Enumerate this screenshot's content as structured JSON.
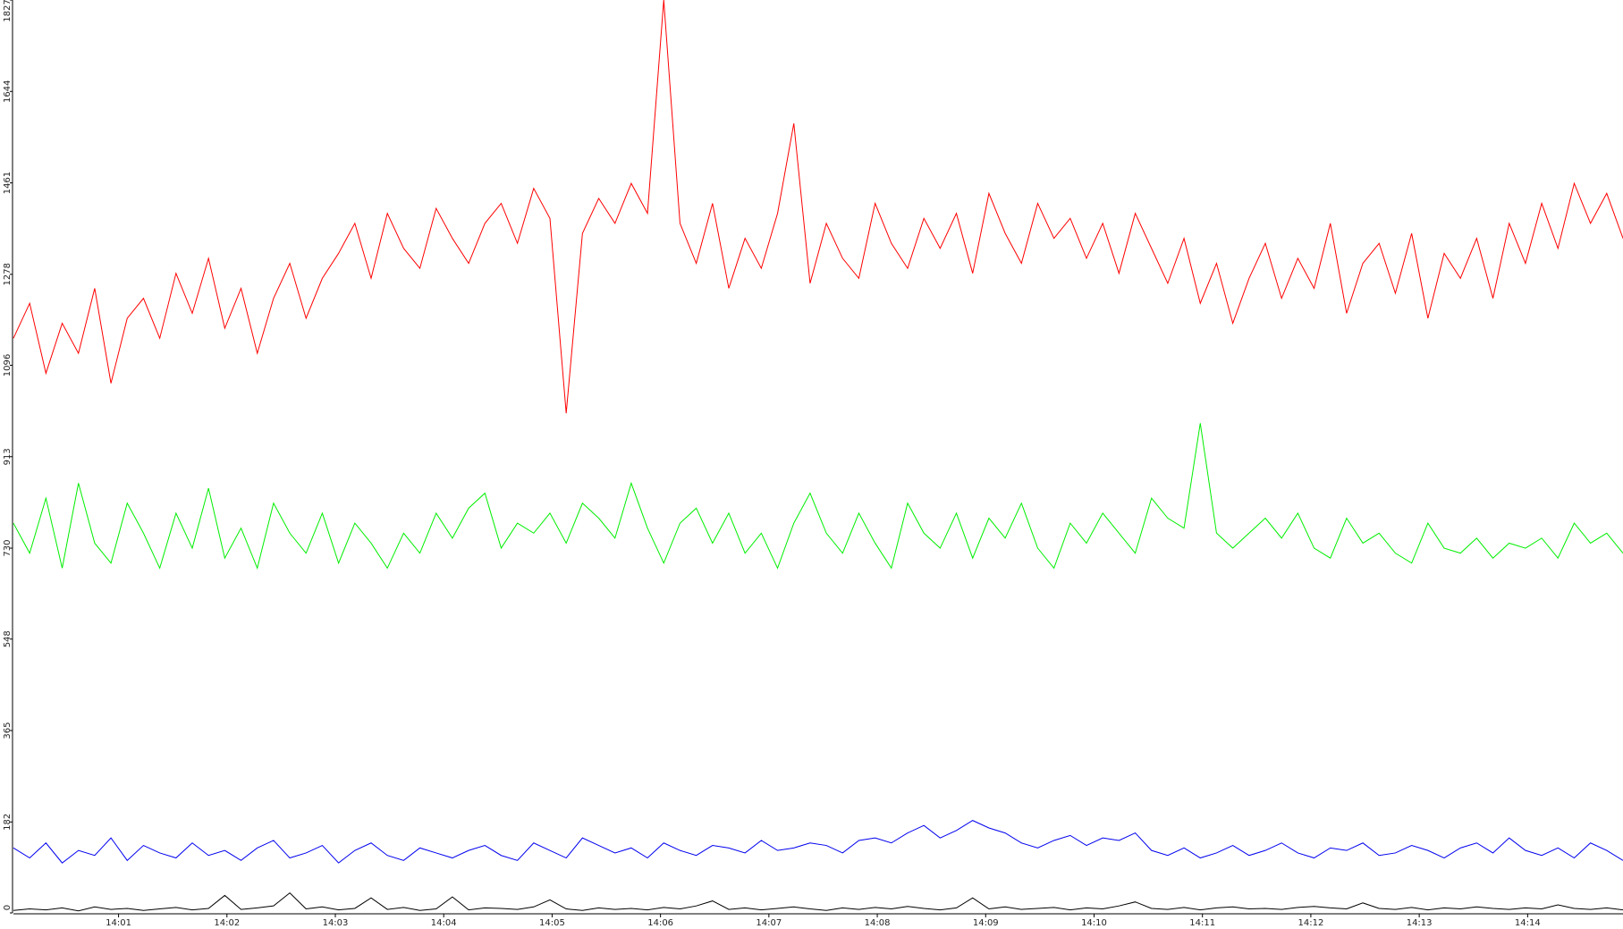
{
  "chart_data": {
    "type": "line",
    "x": [
      0.03,
      0.18,
      0.33,
      0.48,
      0.63,
      0.78,
      0.93,
      1.08,
      1.23,
      1.38,
      1.53,
      1.68,
      1.83,
      1.98,
      2.13,
      2.28,
      2.43,
      2.58,
      2.73,
      2.88,
      3.03,
      3.18,
      3.33,
      3.48,
      3.63,
      3.78,
      3.93,
      4.08,
      4.23,
      4.38,
      4.53,
      4.68,
      4.83,
      4.98,
      5.13,
      5.28,
      5.43,
      5.58,
      5.73,
      5.88,
      6.03,
      6.18,
      6.33,
      6.48,
      6.63,
      6.78,
      6.93,
      7.08,
      7.23,
      7.38,
      7.53,
      7.68,
      7.83,
      7.98,
      8.13,
      8.28,
      8.43,
      8.58,
      8.73,
      8.88,
      9.03,
      9.18,
      9.33,
      9.48,
      9.63,
      9.78,
      9.93,
      10.08,
      10.23,
      10.38,
      10.53,
      10.68,
      10.83,
      10.98,
      11.13,
      11.28,
      11.43,
      11.58,
      11.73,
      11.88,
      12.03,
      12.18,
      12.33,
      12.48,
      12.63,
      12.78,
      12.93,
      13.08,
      13.23,
      13.38,
      13.53,
      13.68,
      13.83,
      13.98,
      14.13,
      14.28,
      14.43,
      14.58,
      14.73,
      14.88
    ],
    "xlim": [
      0.03,
      14.88
    ],
    "xticks": [
      {
        "value": 1,
        "label": "14:01"
      },
      {
        "value": 2,
        "label": "14:02"
      },
      {
        "value": 3,
        "label": "14:03"
      },
      {
        "value": 4,
        "label": "14:04"
      },
      {
        "value": 5,
        "label": "14:05"
      },
      {
        "value": 6,
        "label": "14:06"
      },
      {
        "value": 7,
        "label": "14:07"
      },
      {
        "value": 8,
        "label": "14:08"
      },
      {
        "value": 9,
        "label": "14:09"
      },
      {
        "value": 10,
        "label": "14:10"
      },
      {
        "value": 11,
        "label": "14:11"
      },
      {
        "value": 12,
        "label": "14:12"
      },
      {
        "value": 13,
        "label": "14:13"
      },
      {
        "value": 14,
        "label": "14:14"
      }
    ],
    "ylim": [
      0,
      1827
    ],
    "yticks": [
      0,
      182,
      365,
      548,
      730,
      913,
      1096,
      1278,
      1461,
      1644,
      1827
    ],
    "series": [
      {
        "color": "#ff0000",
        "values": [
          1150,
          1220,
          1080,
          1180,
          1120,
          1250,
          1060,
          1190,
          1230,
          1150,
          1280,
          1200,
          1310,
          1170,
          1250,
          1120,
          1230,
          1300,
          1190,
          1270,
          1320,
          1380,
          1270,
          1400,
          1330,
          1290,
          1410,
          1350,
          1300,
          1380,
          1420,
          1340,
          1450,
          1390,
          1000,
          1360,
          1430,
          1380,
          1460,
          1400,
          1827,
          1380,
          1300,
          1420,
          1250,
          1350,
          1290,
          1400,
          1580,
          1260,
          1380,
          1310,
          1270,
          1420,
          1340,
          1290,
          1390,
          1330,
          1400,
          1280,
          1440,
          1360,
          1300,
          1420,
          1350,
          1390,
          1310,
          1380,
          1280,
          1400,
          1330,
          1260,
          1350,
          1220,
          1300,
          1180,
          1270,
          1340,
          1230,
          1310,
          1250,
          1380,
          1200,
          1300,
          1340,
          1240,
          1360,
          1190,
          1320,
          1270,
          1350,
          1230,
          1380,
          1300,
          1420,
          1330,
          1460,
          1380,
          1440,
          1350
        ]
      },
      {
        "color": "#00ee00",
        "values": [
          780,
          720,
          830,
          690,
          860,
          740,
          700,
          820,
          760,
          690,
          800,
          730,
          850,
          710,
          770,
          690,
          820,
          760,
          720,
          800,
          700,
          780,
          740,
          690,
          760,
          720,
          800,
          750,
          810,
          840,
          730,
          780,
          760,
          800,
          740,
          820,
          790,
          750,
          860,
          770,
          700,
          780,
          810,
          740,
          800,
          720,
          760,
          690,
          780,
          840,
          760,
          720,
          800,
          740,
          690,
          820,
          760,
          730,
          800,
          710,
          790,
          750,
          820,
          730,
          690,
          780,
          740,
          800,
          760,
          720,
          830,
          790,
          770,
          980,
          760,
          730,
          760,
          790,
          750,
          800,
          730,
          710,
          790,
          740,
          760,
          720,
          700,
          780,
          730,
          720,
          750,
          710,
          740,
          730,
          750,
          710,
          780,
          740,
          760,
          720
        ]
      },
      {
        "color": "#0000ee",
        "values": [
          130,
          110,
          140,
          100,
          125,
          115,
          150,
          105,
          135,
          120,
          110,
          140,
          115,
          125,
          105,
          130,
          145,
          110,
          120,
          135,
          100,
          125,
          140,
          115,
          105,
          130,
          120,
          110,
          125,
          135,
          115,
          105,
          140,
          125,
          110,
          150,
          135,
          120,
          130,
          110,
          140,
          125,
          115,
          135,
          130,
          120,
          145,
          125,
          130,
          140,
          135,
          120,
          145,
          150,
          140,
          160,
          175,
          150,
          165,
          185,
          170,
          160,
          140,
          130,
          145,
          155,
          135,
          150,
          145,
          160,
          125,
          115,
          130,
          110,
          120,
          135,
          115,
          125,
          140,
          120,
          110,
          130,
          125,
          140,
          115,
          120,
          135,
          125,
          110,
          130,
          140,
          120,
          150,
          125,
          115,
          130,
          110,
          140,
          125,
          105
        ]
      },
      {
        "color": "#000000",
        "values": [
          5,
          8,
          6,
          10,
          4,
          12,
          7,
          9,
          5,
          8,
          11,
          6,
          9,
          35,
          7,
          10,
          14,
          40,
          8,
          12,
          6,
          9,
          30,
          7,
          11,
          5,
          8,
          32,
          6,
          10,
          9,
          7,
          12,
          26,
          8,
          5,
          10,
          7,
          9,
          6,
          11,
          8,
          14,
          24,
          7,
          10,
          6,
          9,
          12,
          8,
          5,
          10,
          7,
          11,
          8,
          13,
          9,
          6,
          10,
          30,
          8,
          12,
          7,
          9,
          11,
          6,
          10,
          8,
          14,
          22,
          9,
          7,
          11,
          6,
          10,
          12,
          8,
          9,
          7,
          11,
          13,
          10,
          8,
          20,
          9,
          7,
          11,
          6,
          10,
          8,
          12,
          9,
          7,
          10,
          8,
          16,
          9,
          7,
          10,
          6
        ]
      }
    ]
  }
}
